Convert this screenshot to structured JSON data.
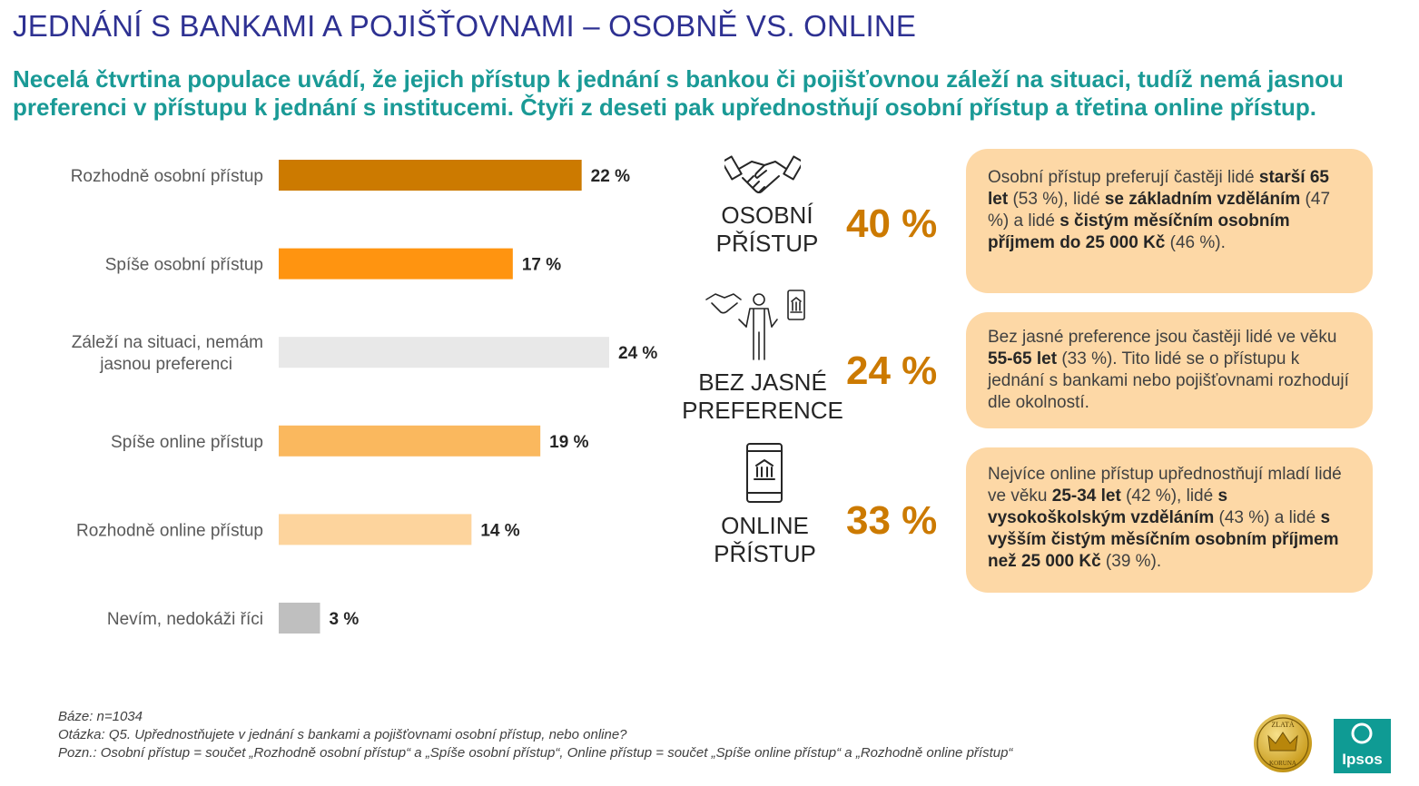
{
  "title": "JEDNÁNÍ S BANKAMI A POJIŠŤOVNAMI – OSOBNĚ VS. ONLINE",
  "subtitle": "Necelá čtvrtina populace uvádí, že jejich přístup k jednání s bankou či pojišťovnou záleží na situaci, tudíž nemá jasnou preferenci v přístupu k jednání s institucemi. Čtyři z deseti pak upřednostňují osobní přístup a třetina online přístup.",
  "chart_data": {
    "type": "bar",
    "orientation": "horizontal",
    "categories": [
      "Rozhodně osobní přístup",
      "Spíše osobní přístup",
      "Záleží na situaci, nemám jasnou preferenci",
      "Spíše online přístup",
      "Rozhodně online přístup",
      "Nevím, nedokáži říci"
    ],
    "values": [
      22,
      17,
      24,
      19,
      14,
      3
    ],
    "value_labels": [
      "22 %",
      "17 %",
      "24 %",
      "19 %",
      "14 %",
      "3 %"
    ],
    "colors": [
      "#cc7a00",
      "#ff9410",
      "#e8e8e8",
      "#fab85e",
      "#fdd49d",
      "#bfbfbf"
    ],
    "xlim": [
      0,
      24
    ]
  },
  "segments": [
    {
      "name_line1": "OSOBNÍ",
      "name_line2": "PŘÍSTUP",
      "percent": "40 %",
      "icon": "handshake-icon"
    },
    {
      "name_line1": "BEZ JASNÉ",
      "name_line2": "PREFERENCE",
      "percent": "24 %",
      "icon": "person-choice-icon"
    },
    {
      "name_line1": "ONLINE",
      "name_line2": "PŘÍSTUP",
      "percent": "33 %",
      "icon": "smartphone-bank-icon"
    }
  ],
  "boxes": [
    {
      "runs": [
        {
          "t": "Osobní přístup preferují častěji lidé ",
          "b": false
        },
        {
          "t": "starší 65 let",
          "b": true
        },
        {
          "t": " (53 %), lidé ",
          "b": false
        },
        {
          "t": "se základním vzděláním",
          "b": true
        },
        {
          "t": " (47 %) a lidé ",
          "b": false
        },
        {
          "t": "s čistým měsíčním osobním příjmem do 25 000 Kč",
          "b": true
        },
        {
          "t": " (46 %).",
          "b": false
        }
      ]
    },
    {
      "runs": [
        {
          "t": "Bez jasné preference jsou častěji lidé ve věku ",
          "b": false
        },
        {
          "t": "55-65 let",
          "b": true
        },
        {
          "t": " (33 %). Tito lidé se o přístupu k jednání s bankami nebo pojišťovnami rozhodují dle okolností.",
          "b": false
        }
      ]
    },
    {
      "runs": [
        {
          "t": "Nejvíce online přístup upřednostňují mladí lidé ve věku ",
          "b": false
        },
        {
          "t": "25-34 let",
          "b": true
        },
        {
          "t": " (42 %), lidé ",
          "b": false
        },
        {
          "t": "s vysokoškolským vzděláním",
          "b": true
        },
        {
          "t": " (43 %) a lidé ",
          "b": false
        },
        {
          "t": "s vyšším čistým měsíčním osobním příjmem než 25 000 Kč",
          "b": true
        },
        {
          "t": " (39 %).",
          "b": false
        }
      ]
    }
  ],
  "footer": {
    "base": "Báze: n=1034",
    "question": "Otázka: Q5. Upřednostňujete v jednání s bankami a pojišťovnami osobní přístup, nebo online?",
    "note": "Pozn.: Osobní přístup = součet „Rozhodně osobní přístup“ a „Spíše osobní přístup“, Online přístup = součet „Spíše online přístup“ a „Rozhodně online přístup“"
  },
  "logos": {
    "crown_text_top": "ZLATÁ",
    "crown_text_bottom": "KORUNA",
    "ipsos_text": "Ipsos"
  }
}
